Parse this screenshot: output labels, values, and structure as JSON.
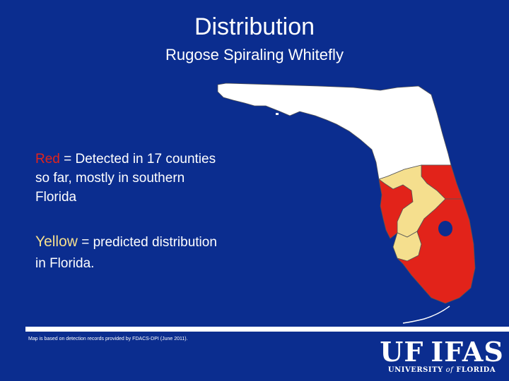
{
  "slide": {
    "title": "Distribution",
    "subtitle": "Rugose Spiraling Whitefly"
  },
  "legend": {
    "red_keyword": "Red",
    "red_text": " = Detected in 17 counties so far, mostly in southern Florida",
    "yellow_keyword": "Yellow",
    "yellow_text": " = predicted distribution in Florida."
  },
  "source_note": "Map is based on detection records provided by FDACS-DPI (June 2011).",
  "logo": {
    "left": "UF",
    "right": "IFAS",
    "university_prefix": "UNIVERSITY ",
    "university_of": "of",
    "university_suffix": " FLORIDA"
  },
  "map": {
    "region": "Florida",
    "colors": {
      "detected": "#e2231a",
      "predicted": "#f5df8e",
      "other": "#ffffff",
      "water": "#0b2d8f"
    }
  }
}
